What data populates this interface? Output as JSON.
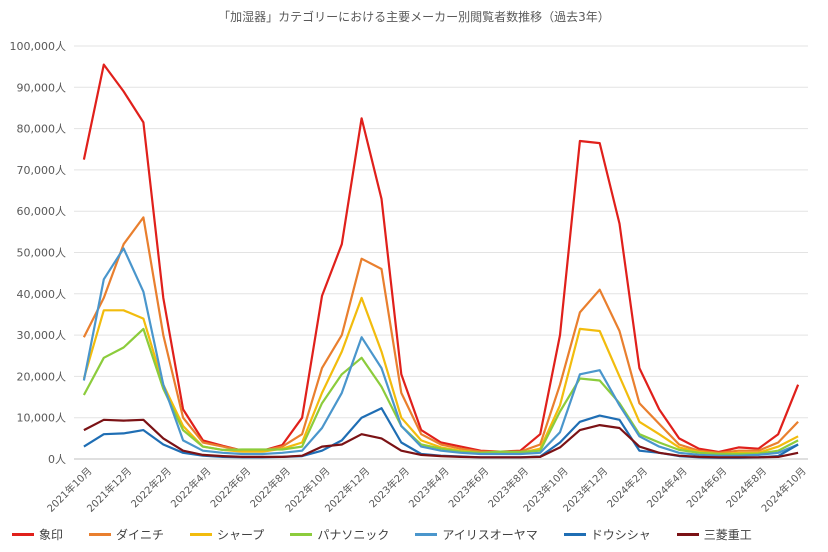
{
  "chart_data": {
    "type": "line",
    "title": "「加湿器」カテゴリーにおける主要メーカー別閲覧者数推移（過去3年）",
    "xlabel": "",
    "ylabel": "",
    "ylim": [
      0,
      100000
    ],
    "y_ticks": [
      {
        "value": 0,
        "label": "0人"
      },
      {
        "value": 10000,
        "label": "10,000人"
      },
      {
        "value": 20000,
        "label": "20,000人"
      },
      {
        "value": 30000,
        "label": "30,000人"
      },
      {
        "value": 40000,
        "label": "40,000人"
      },
      {
        "value": 50000,
        "label": "50,000人"
      },
      {
        "value": 60000,
        "label": "60,000人"
      },
      {
        "value": 70000,
        "label": "70,000人"
      },
      {
        "value": 80000,
        "label": "80,000人"
      },
      {
        "value": 90000,
        "label": "90,000人"
      },
      {
        "value": 100000,
        "label": "100,000人"
      }
    ],
    "grid": true,
    "legend_position": "bottom",
    "x": [
      "2021年10月",
      "2021年11月",
      "2021年12月",
      "2022年1月",
      "2022年2月",
      "2022年3月",
      "2022年4月",
      "2022年5月",
      "2022年6月",
      "2022年7月",
      "2022年8月",
      "2022年9月",
      "2022年10月",
      "2022年11月",
      "2022年12月",
      "2023年1月",
      "2023年2月",
      "2023年3月",
      "2023年4月",
      "2023年5月",
      "2023年6月",
      "2023年7月",
      "2023年8月",
      "2023年9月",
      "2023年10月",
      "2023年11月",
      "2023年12月",
      "2024年1月",
      "2024年2月",
      "2024年3月",
      "2024年4月",
      "2024年5月",
      "2024年6月",
      "2024年7月",
      "2024年8月",
      "2024年9月",
      "2024年10月"
    ],
    "x_tick_labels": [
      {
        "index": 0,
        "label": "2021年10月"
      },
      {
        "index": 2,
        "label": "2021年12月"
      },
      {
        "index": 4,
        "label": "2022年2月"
      },
      {
        "index": 6,
        "label": "2022年4月"
      },
      {
        "index": 8,
        "label": "2022年6月"
      },
      {
        "index": 10,
        "label": "2022年8月"
      },
      {
        "index": 12,
        "label": "2022年10月"
      },
      {
        "index": 14,
        "label": "2022年12月"
      },
      {
        "index": 16,
        "label": "2023年2月"
      },
      {
        "index": 18,
        "label": "2023年4月"
      },
      {
        "index": 20,
        "label": "2023年6月"
      },
      {
        "index": 22,
        "label": "2023年8月"
      },
      {
        "index": 24,
        "label": "2023年10月"
      },
      {
        "index": 26,
        "label": "2023年12月"
      },
      {
        "index": 28,
        "label": "2024年2月"
      },
      {
        "index": 30,
        "label": "2024年4月"
      },
      {
        "index": 32,
        "label": "2024年6月"
      },
      {
        "index": 34,
        "label": "2024年8月"
      },
      {
        "index": 36,
        "label": "2024年10月"
      }
    ],
    "series": [
      {
        "name": "象印",
        "color": "#e0201b",
        "values": [
          72500,
          95500,
          89000,
          81500,
          39000,
          12000,
          4500,
          3200,
          2000,
          2000,
          3400,
          10000,
          39500,
          52000,
          82500,
          63000,
          20500,
          7000,
          4000,
          3000,
          2000,
          1800,
          2000,
          6000,
          30000,
          77000,
          76500,
          57000,
          22000,
          12000,
          5000,
          2500,
          1700,
          2800,
          2500,
          6000,
          18000
        ]
      },
      {
        "name": "ダイニチ",
        "color": "#e97f2e",
        "values": [
          29500,
          39000,
          52000,
          58500,
          30000,
          10000,
          4000,
          3000,
          2000,
          2000,
          3000,
          6000,
          22000,
          30000,
          48500,
          46000,
          16000,
          6000,
          3500,
          2500,
          1800,
          1800,
          1800,
          3500,
          18000,
          35500,
          41000,
          31000,
          13500,
          8500,
          3500,
          2000,
          1500,
          2000,
          2000,
          4000,
          9000
        ]
      },
      {
        "name": "シャープ",
        "color": "#f2bc0d",
        "values": [
          19500,
          36000,
          36000,
          34000,
          18000,
          8000,
          3000,
          2200,
          1800,
          1800,
          2500,
          4000,
          16000,
          26000,
          39000,
          26000,
          10000,
          4500,
          2800,
          2000,
          1500,
          1500,
          1500,
          2500,
          13000,
          31500,
          31000,
          20000,
          9000,
          6000,
          2800,
          1700,
          1200,
          1500,
          1500,
          3000,
          5500
        ]
      },
      {
        "name": "パナソニック",
        "color": "#8ccc3c",
        "values": [
          15500,
          24500,
          27000,
          31500,
          17000,
          7000,
          3000,
          2200,
          2300,
          2300,
          2300,
          3000,
          13500,
          20500,
          24500,
          17500,
          8000,
          3500,
          2500,
          1800,
          1500,
          1800,
          1700,
          2000,
          11500,
          19500,
          19000,
          13500,
          6000,
          4000,
          2200,
          1500,
          1200,
          1200,
          1300,
          2000,
          4500
        ]
      },
      {
        "name": "アイリスオーヤマ",
        "color": "#4a96cc",
        "values": [
          19000,
          43500,
          51000,
          40500,
          18000,
          4500,
          2000,
          1500,
          1200,
          1200,
          1500,
          2000,
          7500,
          16000,
          29500,
          22000,
          8000,
          3000,
          2000,
          1500,
          1200,
          1200,
          1200,
          1500,
          6500,
          20500,
          21500,
          13000,
          5500,
          3000,
          1500,
          1000,
          800,
          800,
          1000,
          1500,
          3500
        ]
      },
      {
        "name": "ドウシシャ",
        "color": "#1f6eb4",
        "values": [
          3000,
          6000,
          6200,
          7000,
          3500,
          1500,
          800,
          500,
          400,
          400,
          500,
          700,
          2000,
          4500,
          10000,
          12300,
          4000,
          1200,
          800,
          600,
          400,
          400,
          400,
          600,
          4000,
          9000,
          10500,
          9500,
          2000,
          1500,
          700,
          400,
          300,
          300,
          400,
          700,
          3500
        ]
      },
      {
        "name": "三菱重工",
        "color": "#7b1215",
        "values": [
          7000,
          9500,
          9300,
          9500,
          5000,
          2000,
          1000,
          700,
          500,
          500,
          500,
          800,
          3000,
          3500,
          6000,
          5000,
          2000,
          1000,
          700,
          500,
          400,
          400,
          400,
          500,
          2800,
          7000,
          8200,
          7500,
          3000,
          1500,
          800,
          500,
          400,
          400,
          400,
          500,
          1500
        ]
      }
    ]
  }
}
